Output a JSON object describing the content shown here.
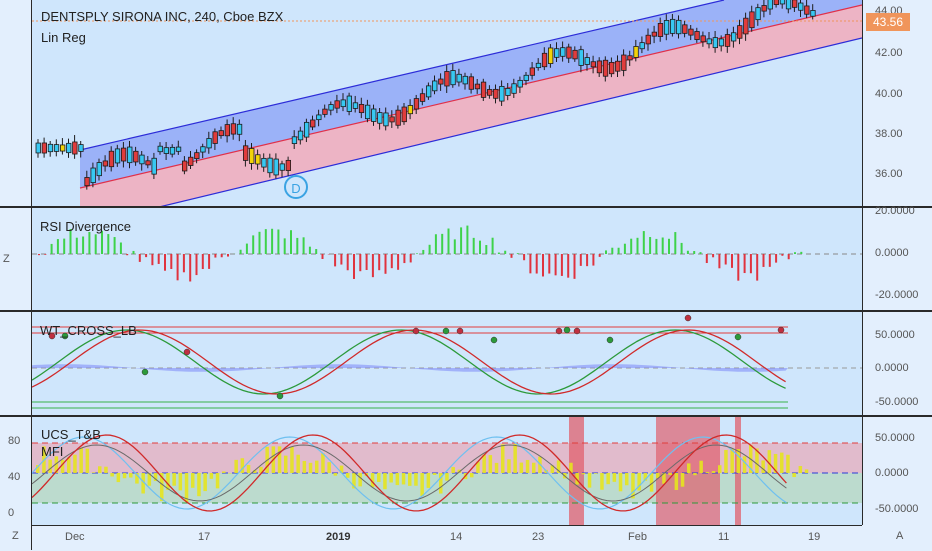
{
  "main": {
    "title": "DENTSPLY SIRONA INC, 240, Cboe BZX",
    "indicator": "Lin Reg",
    "price_ticks": [
      "44.00",
      "42.00",
      "40.00",
      "38.00",
      "36.00"
    ],
    "last_price": "43.56",
    "marker": "D"
  },
  "rsi": {
    "title": "RSI Divergence",
    "ticks": [
      "20.0000",
      "0.0000",
      "-20.0000"
    ]
  },
  "wt": {
    "title": "WT_CROSS_LB",
    "ticks": [
      "50.0000",
      "0.0000",
      "-50.0000"
    ]
  },
  "ucs": {
    "title": "UCS_T&B",
    "subtitle": "MFI",
    "ticks": [
      "50.0000",
      "0.0000",
      "-50.0000"
    ],
    "left_ticks": [
      "80",
      "40",
      "0"
    ]
  },
  "xaxis": {
    "labels": [
      "Dec",
      "17",
      "2019",
      "14",
      "23",
      "Feb",
      "11",
      "19"
    ]
  },
  "corners": {
    "z": "Z",
    "a": "A",
    "z2": "Z"
  },
  "colors": {
    "up": "#38c8f2",
    "down": "#e03c3c",
    "doji": "#f2d30a",
    "channel_upper": "#7b86f7",
    "channel_lower": "#f19ba3",
    "rsi_up": "#3ed24a",
    "rsi_down": "#e0333e",
    "mfi": "#e6e41e"
  }
}
